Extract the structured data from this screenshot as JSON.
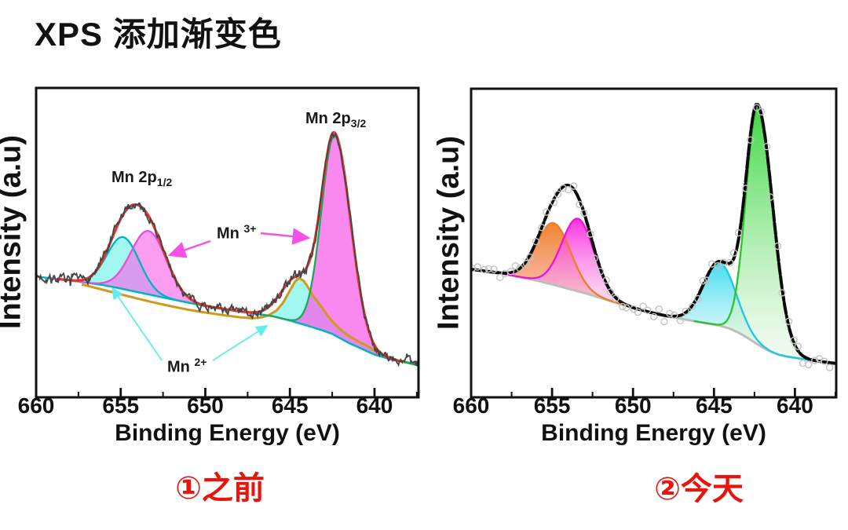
{
  "title": "XPS 添加渐变色",
  "captions": [
    {
      "text": "①之前",
      "color": "#e8150d"
    },
    {
      "text": "②今天",
      "color": "#e8150d"
    }
  ],
  "annotations": {
    "mn2p12": {
      "main": "Mn 2p",
      "sub": "1/2"
    },
    "mn2p32": {
      "main": "Mn 2p",
      "sub": "3/2"
    },
    "mn3": {
      "main": "Mn",
      "sup": "3+"
    },
    "mn2": {
      "main": "Mn",
      "sup": "2+"
    }
  },
  "chart_data": [
    {
      "type": "area",
      "panel": "before-flat-colors",
      "title": "",
      "xlabel": "Binding Energy (eV)",
      "ylabel": "Intensity (a.u)",
      "x_axis": {
        "label": "Binding Energy (eV)",
        "min": 637.4,
        "max": 660,
        "reversed": true,
        "major_ticks": [
          660,
          655,
          650,
          645,
          640
        ],
        "minor_tick_step": 2.5
      },
      "y_axis": {
        "label": "Intensity (a.u)",
        "min": 0,
        "max": 1,
        "ticks": "none"
      },
      "baseline": {
        "name": "background",
        "color": "#00b3bd",
        "width": 2.5,
        "points": [
          [
            637.4,
            0.102
          ],
          [
            638,
            0.112
          ],
          [
            639,
            0.122
          ],
          [
            640,
            0.138
          ],
          [
            640.8,
            0.158
          ],
          [
            641.5,
            0.175
          ],
          [
            642,
            0.19
          ],
          [
            642.5,
            0.205
          ],
          [
            643,
            0.215
          ],
          [
            644,
            0.232
          ],
          [
            644.5,
            0.24
          ],
          [
            645,
            0.248
          ],
          [
            646,
            0.262
          ],
          [
            648,
            0.278
          ],
          [
            650,
            0.295
          ],
          [
            652,
            0.317
          ],
          [
            654,
            0.34
          ],
          [
            655,
            0.3515
          ],
          [
            656,
            0.3625
          ],
          [
            658,
            0.378
          ],
          [
            660,
            0.39
          ]
        ]
      },
      "baseline2": {
        "name": "background-2",
        "color": "#cd9a1e",
        "width": 3,
        "points": [
          [
            637.6,
            0.106
          ],
          [
            638,
            0.111
          ],
          [
            638.5,
            0.117
          ],
          [
            639,
            0.126
          ],
          [
            639.5,
            0.138
          ],
          [
            640,
            0.152
          ],
          [
            640.5,
            0.168
          ],
          [
            641,
            0.182
          ],
          [
            641.5,
            0.198
          ],
          [
            642,
            0.218
          ],
          [
            642.4,
            0.24
          ],
          [
            642.8,
            0.266
          ],
          [
            643.2,
            0.297
          ],
          [
            643.6,
            0.325
          ],
          [
            644,
            0.362
          ],
          [
            644.2,
            0.377
          ],
          [
            644.45,
            0.385
          ],
          [
            644.7,
            0.374
          ],
          [
            645,
            0.345
          ],
          [
            645.4,
            0.306
          ],
          [
            645.8,
            0.28
          ],
          [
            646.3,
            0.264
          ],
          [
            646.8,
            0.257
          ],
          [
            647.3,
            0.2555
          ],
          [
            648,
            0.259
          ],
          [
            649,
            0.266
          ],
          [
            650,
            0.274
          ],
          [
            651,
            0.283
          ],
          [
            652,
            0.294
          ],
          [
            653,
            0.306
          ],
          [
            654,
            0.319
          ],
          [
            655,
            0.333
          ],
          [
            656,
            0.347
          ],
          [
            657.3,
            0.365
          ]
        ]
      },
      "peaks": [
        {
          "name": "Mn2+ 2p1/2",
          "center": 654.85,
          "amplitude": 0.168,
          "sigma": 0.95,
          "stroke": "#00b3bd",
          "fill": "rgba(88,240,230,0.55)"
        },
        {
          "name": "Mn3+ 2p1/2",
          "center": 653.35,
          "amplitude": 0.205,
          "sigma": 1.05,
          "stroke": "#e84fd4",
          "fill": "rgba(248,98,234,0.62)"
        },
        {
          "name": "Mn2+ 2p3/2",
          "center": 644.55,
          "amplitude": 0.142,
          "sigma": 0.95,
          "fill": "rgba(88,240,230,0.55)",
          "fill_mode": "between-baselines",
          "fill_range": [
            638.6,
            646.5
          ]
        },
        {
          "name": "Mn3+ 2p3/2",
          "center": 642.35,
          "amplitude": 0.645,
          "sigma_left": 0.95,
          "sigma_right": 0.78,
          "stroke": "#1da85e",
          "fill": "rgba(248,98,234,0.75)"
        }
      ],
      "envelope": {
        "color": "#e63529",
        "width": 3.2,
        "range": [
          638.4,
          658.6
        ]
      },
      "data_trace": {
        "style": "noisy-line",
        "color": "#454545",
        "width": 1.8,
        "noise": 0.012,
        "seed": 7
      }
    },
    {
      "type": "area",
      "panel": "today-gradient-colors",
      "title": "",
      "xlabel": "Binding Energy (eV)",
      "ylabel": "Intensity (a.u)",
      "x_axis": {
        "label": "Binding Energy (eV)",
        "min": 637.45,
        "max": 660,
        "reversed": true,
        "major_ticks": [
          660,
          655,
          650,
          645,
          640
        ],
        "minor_tick_step": 2.5
      },
      "y_axis": {
        "label": "Intensity (a.u)",
        "min": 0,
        "max": 1,
        "ticks": "none"
      },
      "baseline": {
        "name": "background",
        "color": "#bdbdbd",
        "width": 3,
        "points": [
          [
            637.5,
            0.11
          ],
          [
            638,
            0.113
          ],
          [
            639,
            0.12
          ],
          [
            640,
            0.128
          ],
          [
            640.5,
            0.132
          ],
          [
            641,
            0.138
          ],
          [
            641.5,
            0.148
          ],
          [
            642,
            0.162
          ],
          [
            642.5,
            0.178
          ],
          [
            643,
            0.195
          ],
          [
            643.5,
            0.21
          ],
          [
            644,
            0.222
          ],
          [
            644.5,
            0.23
          ],
          [
            645,
            0.236
          ],
          [
            646,
            0.245
          ],
          [
            647,
            0.254
          ],
          [
            648,
            0.264
          ],
          [
            649,
            0.276
          ],
          [
            650,
            0.29
          ],
          [
            651,
            0.306
          ],
          [
            652,
            0.322
          ],
          [
            653,
            0.338
          ],
          [
            654,
            0.352
          ],
          [
            655,
            0.366
          ],
          [
            656,
            0.379
          ],
          [
            657,
            0.39
          ],
          [
            658,
            0.4
          ],
          [
            659,
            0.408
          ],
          [
            660,
            0.415
          ]
        ]
      },
      "peaks": [
        {
          "name": "Mn2+ 2p1/2",
          "center": 654.9,
          "amplitude": 0.2,
          "sigma": 1.05,
          "stroke": "#ef7d22",
          "gradient": {
            "top": "#f07e28",
            "bottom": "#f8b1a6",
            "top_opacity": 0.95,
            "bottom_opacity": 0.75
          }
        },
        {
          "name": "Mn3+ 2p1/2",
          "center": 653.4,
          "amplitude": 0.235,
          "sigma": 1.0,
          "stroke": "#ef13d4",
          "gradient": {
            "top": "#fa28e0",
            "bottom": "#fbd4ea",
            "top_opacity": 0.95,
            "bottom_opacity": 0.5
          }
        },
        {
          "name": "Mn2+ 2p3/2",
          "center": 644.65,
          "amplitude": 0.205,
          "sigma": 1.0,
          "stroke": "#1fc8e2",
          "gradient": {
            "top": "#2fd8ee",
            "bottom": "#dff8fb",
            "top_opacity": 0.9,
            "bottom_opacity": 0.45
          }
        },
        {
          "name": "Mn3+ 2p3/2",
          "center": 642.3,
          "amplitude": 0.765,
          "sigma_left": 0.95,
          "sigma_right": 0.72,
          "stroke": "#2cc32c",
          "gradient": {
            "top": "#35d63a",
            "bottom": "#edf9ec",
            "top_opacity": 0.95,
            "bottom_opacity": 0.55
          }
        }
      ],
      "envelope": {
        "color": "#0b0b0b",
        "width": 4,
        "dash": "14 3",
        "range": [
          637.5,
          660
        ]
      },
      "data_trace": {
        "style": "scatter-circles",
        "color": "#c3c3c3",
        "radius": 4,
        "step": 0.33,
        "noise": 0.015,
        "seed": 11
      }
    }
  ]
}
